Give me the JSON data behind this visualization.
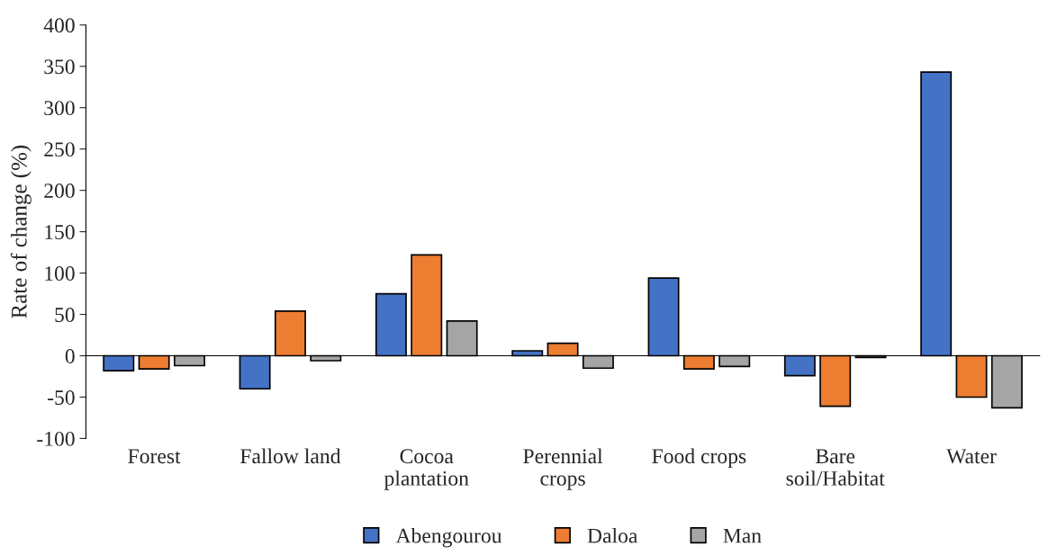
{
  "chart_data": {
    "type": "bar",
    "ylabel": "Rate of change (%)",
    "categories": [
      "Forest",
      "Fallow land",
      "Cocoa\nplantation",
      "Perennial\ncrops",
      "Food crops",
      "Bare\nsoil/Habitat",
      "Water"
    ],
    "series": [
      {
        "name": "Abengourou",
        "color": "#4472c4",
        "values": [
          -18,
          -40,
          75,
          6,
          94,
          -24,
          343
        ]
      },
      {
        "name": "Daloa",
        "color": "#ed7d31",
        "values": [
          -16,
          54,
          122,
          15,
          -16,
          -61,
          -50
        ]
      },
      {
        "name": "Man",
        "color": "#a5a5a5",
        "values": [
          -12,
          -6,
          42,
          -15,
          -13,
          -2,
          -63
        ]
      }
    ],
    "ylim": [
      -100,
      400
    ],
    "yticks": [
      -100,
      -50,
      0,
      50,
      100,
      150,
      200,
      250,
      300,
      350,
      400
    ],
    "legend": "bottom"
  }
}
